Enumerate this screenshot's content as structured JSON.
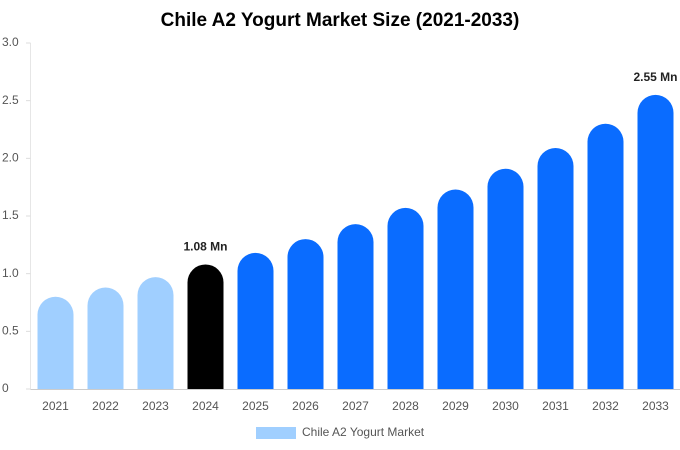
{
  "chart_data": {
    "type": "bar",
    "title": "Chile A2 Yogurt Market Size (2021-2033)",
    "categories": [
      "2021",
      "2022",
      "2023",
      "2024",
      "2025",
      "2026",
      "2027",
      "2028",
      "2029",
      "2030",
      "2031",
      "2032",
      "2033"
    ],
    "series": [
      {
        "name": "Chile A2 Yogurt Market",
        "color": "#a0cfff",
        "colors": [
          "#a0cfff",
          "#a0cfff",
          "#a0cfff",
          "#000000",
          "#0a6cff",
          "#0a6cff",
          "#0a6cff",
          "#0a6cff",
          "#0a6cff",
          "#0a6cff",
          "#0a6cff",
          "#0a6cff",
          "#0a6cff"
        ],
        "values": [
          0.8,
          0.88,
          0.97,
          1.08,
          1.18,
          1.3,
          1.43,
          1.57,
          1.73,
          1.91,
          2.09,
          2.3,
          2.55
        ],
        "value_labels": [
          null,
          null,
          null,
          "1.08 Mn",
          null,
          null,
          null,
          null,
          null,
          null,
          null,
          null,
          "2.55 Mn"
        ]
      }
    ],
    "ylim": [
      0,
      3
    ],
    "yticks": [
      0,
      0.5,
      {
        "value": 1,
        "label": "1.0"
      },
      1.5,
      {
        "value": 2,
        "label": "2.0"
      },
      2.5,
      {
        "value": 3,
        "label": "3.0"
      }
    ],
    "grid": false
  }
}
